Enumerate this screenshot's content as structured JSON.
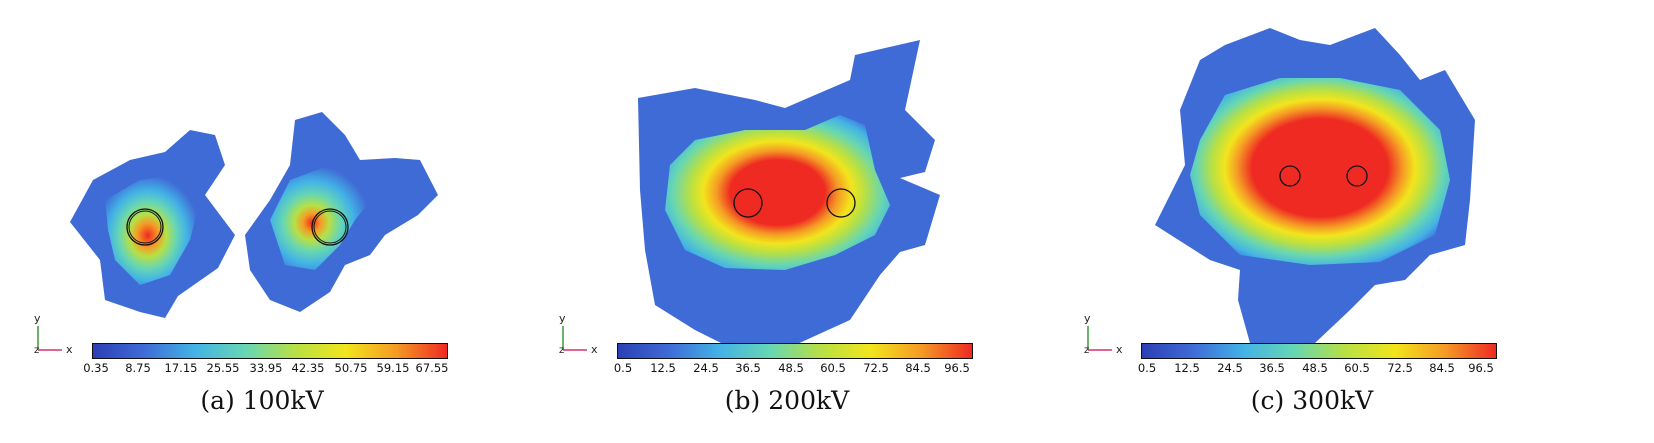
{
  "colormap": [
    "#2b3fb5",
    "#3f6bd6",
    "#43b2e6",
    "#66d6b4",
    "#b7e045",
    "#f2e51c",
    "#f59a25",
    "#ee2a22"
  ],
  "panels": [
    {
      "id": "a",
      "caption": "(a) 100kV",
      "axis_labels": {
        "x": "x",
        "y": "y",
        "z": "z"
      },
      "colorbar_ticks": [
        "0.35",
        "8.75",
        "17.15",
        "25.55",
        "33.95",
        "42.35",
        "50.75",
        "59.15",
        "67.55"
      ]
    },
    {
      "id": "b",
      "caption": "(b) 200kV",
      "axis_labels": {
        "x": "x",
        "y": "y",
        "z": "z"
      },
      "colorbar_ticks": [
        "0.5",
        "12.5",
        "24.5",
        "36.5",
        "48.5",
        "60.5",
        "72.5",
        "84.5",
        "96.5"
      ]
    },
    {
      "id": "c",
      "caption": "(c) 300kV",
      "axis_labels": {
        "x": "x",
        "y": "y",
        "z": "z"
      },
      "colorbar_ticks": [
        "0.5",
        "12.5",
        "24.5",
        "36.5",
        "48.5",
        "60.5",
        "72.5",
        "84.5",
        "96.5"
      ]
    }
  ]
}
